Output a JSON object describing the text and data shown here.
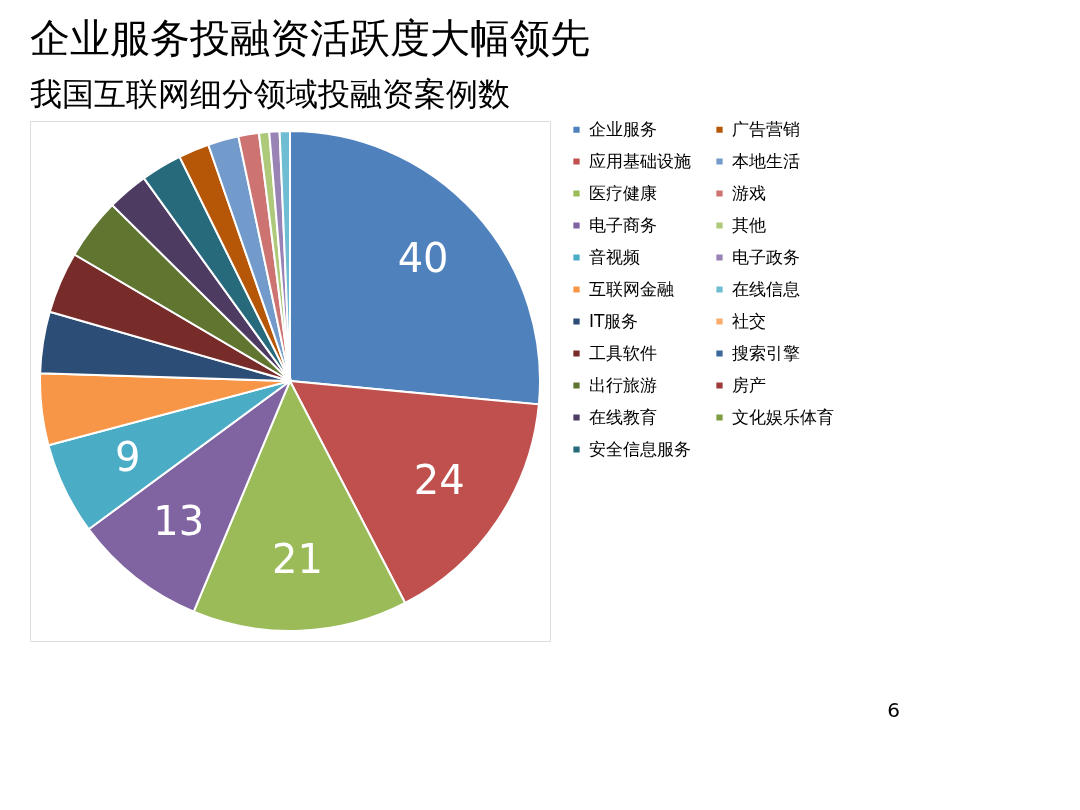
{
  "chart_data": {
    "type": "pie",
    "title": "企业服务投融资活跃度大幅领先",
    "subtitle": "我国互联网细分领域投融资案例数",
    "categories": [
      "企业服务",
      "应用基础设施",
      "医疗健康",
      "电子商务",
      "音视频",
      "互联网金融",
      "IT服务",
      "工具软件",
      "出行旅游",
      "在线教育",
      "安全信息服务",
      "广告营销",
      "本地生活",
      "游戏",
      "其他",
      "电子政务",
      "在线信息",
      "社交",
      "搜索引擎",
      "房产",
      "文化娱乐体育"
    ],
    "values": [
      40,
      24,
      21,
      13,
      9,
      7,
      6,
      6,
      6,
      4,
      4,
      3,
      3,
      2,
      1,
      1,
      1,
      0,
      0,
      0,
      0
    ],
    "value_labels": [
      "40",
      "24",
      "21",
      "13",
      "9",
      null,
      null,
      null,
      null,
      null,
      null,
      null,
      null,
      null,
      null,
      null,
      null,
      null,
      null,
      null,
      null
    ],
    "colors": [
      "#4f81bd",
      "#c0504d",
      "#9bbb59",
      "#8064a2",
      "#4bacc6",
      "#f79646",
      "#2c4d75",
      "#772c2a",
      "#5f7530",
      "#4d3b62",
      "#276a7c",
      "#b65708",
      "#729aca",
      "#cd7371",
      "#afc97a",
      "#9983b5",
      "#6fbdd3",
      "#f9ab6b",
      "#3a679c",
      "#9e3a38",
      "#7e9c40"
    ],
    "legend": "right",
    "annotations": [
      "6"
    ]
  }
}
